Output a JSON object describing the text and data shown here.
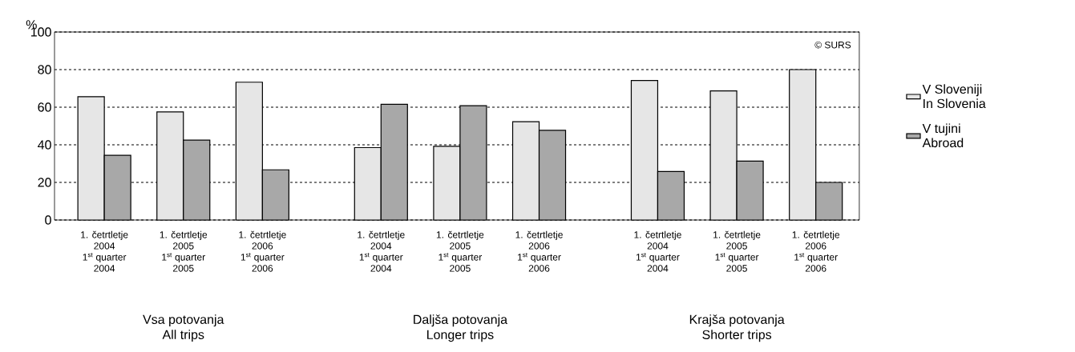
{
  "chart_data": {
    "type": "bar",
    "ylabel": "%",
    "categories": [
      "1. četrtletje\n2004\n1$^{st}$ quarter\n2004",
      "1. četrtletje\n2005\n1$^{st}$ quarter\n2005",
      "1. četrtletje\n2006\n1$^{st}$ quarter\n2006",
      null,
      "1. četrtletje\n2004\n1$^{st}$ quarter\n2004",
      "1. četrtletje\n2005\n1$^{st}$ quarter\n2005",
      "1. četrtletje\n2006\n1$^{st}$ quarter\n2006",
      null,
      "1. četrtletje\n2004\n1$^{st}$ quarter\n2004",
      "1. četrtletje\n2005\n1$^{st}$ quarter\n2005",
      "1. četrtletje\n2006\n1$^{st}$ quarter\n2006"
    ],
    "series": [
      {
        "name": "V Sloveniji\nIn Slovenia",
        "color": "#e6e6e6",
        "values": [
          65.6,
          57.5,
          73.3,
          null,
          38.5,
          39.2,
          52.3,
          null,
          74.2,
          68.7,
          80
        ]
      },
      {
        "name": "V tujini\nAbroad",
        "color": "#a8a8a8",
        "values": [
          34.4,
          42.5,
          26.7,
          null,
          61.5,
          60.8,
          47.7,
          null,
          25.8,
          31.3,
          20
        ]
      }
    ],
    "ylim": [
      0,
      100
    ],
    "yticks": [
      0,
      20,
      40,
      60,
      80,
      100
    ],
    "grid": "y",
    "legend": "right",
    "annotations": [
      "Vsa potovanja\nAll trips",
      "Daljša potovanja\nLonger trips",
      "Krajša potovanja\nShorter trips",
      "© SURS"
    ]
  }
}
